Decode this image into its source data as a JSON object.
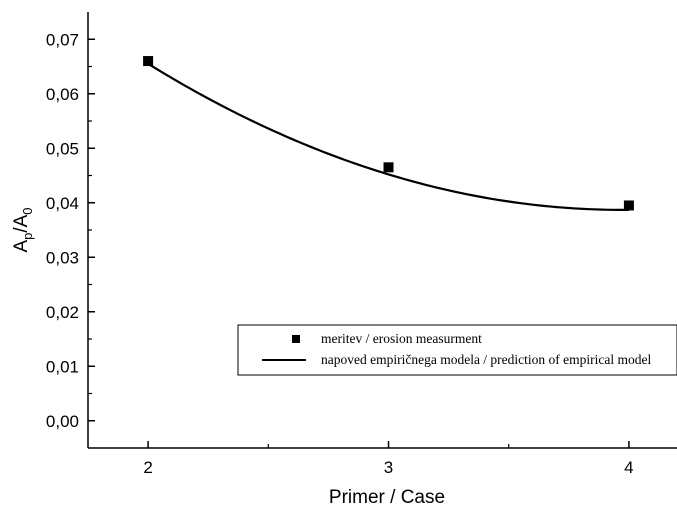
{
  "chart_data": {
    "type": "scatter",
    "x": [
      2,
      3,
      4
    ],
    "xlim": [
      1.75,
      4.2
    ],
    "ylim": [
      -0.005,
      0.075
    ],
    "xticks": [
      2,
      3,
      4
    ],
    "xtick_labels": [
      "2",
      "3",
      "4"
    ],
    "yticks": [
      0.0,
      0.01,
      0.02,
      0.03,
      0.04,
      0.05,
      0.06,
      0.07
    ],
    "ytick_labels": [
      "0,00",
      "0,01",
      "0,02",
      "0,03",
      "0,04",
      "0,05",
      "0,06",
      "0,07"
    ],
    "xlabel": "Primer / Case",
    "ylabel": {
      "main": "A",
      "sub1": "p",
      "mid": "/A",
      "sub2": "0"
    },
    "grid": false,
    "legend_position": "lower-right",
    "series": [
      {
        "name": "meritev / erosion measurment",
        "kind": "markers",
        "marker": "square",
        "x": [
          2,
          3,
          4
        ],
        "values": [
          0.066,
          0.0465,
          0.0395
        ]
      },
      {
        "name": "napoved empiričnega modela / prediction of empirical model",
        "kind": "line",
        "x": [
          2,
          3,
          4
        ],
        "values": [
          0.0655,
          0.0452,
          0.0387
        ]
      }
    ]
  }
}
